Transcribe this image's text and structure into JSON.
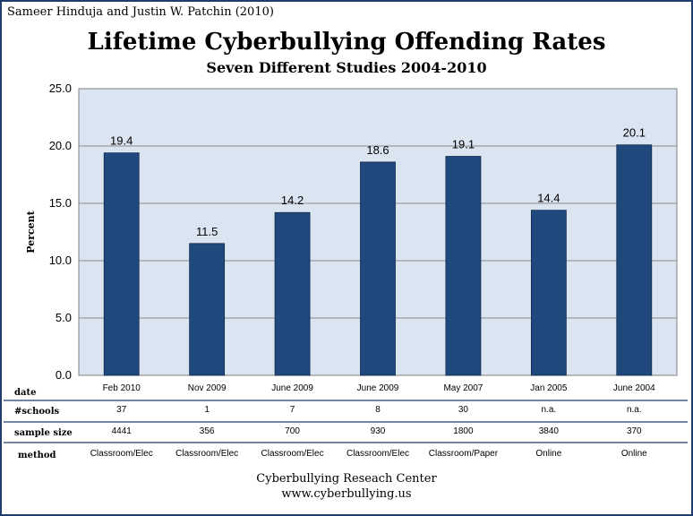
{
  "header": {
    "credit": "Sameer Hinduja and Justin W. Patchin (2010)"
  },
  "chart_data": {
    "type": "bar",
    "title": "Lifetime Cyberbullying Offending Rates",
    "subtitle": "Seven Different Studies 2004-2010",
    "ylabel": "Percent",
    "ylim": [
      0,
      25
    ],
    "yticks": [
      "0.0",
      "5.0",
      "10.0",
      "15.0",
      "20.0",
      "25.0"
    ],
    "grid": true,
    "bar_color": "#1f497d",
    "plot_bg": "#dbe5f1",
    "categories": [
      "Feb 2010",
      "Nov 2009",
      "June 2009",
      "June 2009",
      "May 2007",
      "Jan 2005",
      "June 2004"
    ],
    "values": [
      19.4,
      11.5,
      14.2,
      18.6,
      19.1,
      14.4,
      20.1
    ],
    "value_labels": [
      "19.4",
      "11.5",
      "14.2",
      "18.6",
      "19.1",
      "14.4",
      "20.1"
    ]
  },
  "table": {
    "rows": [
      {
        "header": "date",
        "cells": [
          "Feb 2010",
          "Nov 2009",
          "June 2009",
          "June 2009",
          "May 2007",
          "Jan 2005",
          "June 2004"
        ]
      },
      {
        "header": "#schools",
        "cells": [
          "37",
          "1",
          "7",
          "8",
          "30",
          "n.a.",
          "n.a."
        ]
      },
      {
        "header": "sample size",
        "cells": [
          "4441",
          "356",
          "700",
          "930",
          "1800",
          "3840",
          "370"
        ]
      },
      {
        "header": "method",
        "cells": [
          "Classroom/Elec",
          "Classroom/Elec",
          "Classroom/Elec",
          "Classroom/Elec",
          "Classroom/Paper",
          "Online",
          "Online"
        ]
      }
    ]
  },
  "footer": {
    "line1": "Cyberbullying Reseach Center",
    "line2": "www.cyberbullying.us"
  }
}
